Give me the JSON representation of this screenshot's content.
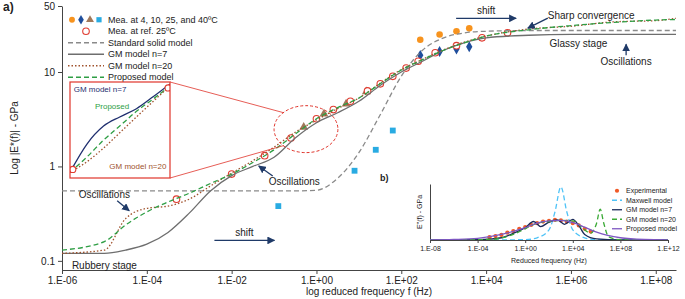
{
  "chart_data": [
    {
      "type": "line",
      "title": "a)",
      "x_label": "log reduced frequency f (Hz)",
      "y_label": "Log |E*(f)| - GPa",
      "log": true,
      "grid": false,
      "legend": "top-left",
      "xlim": [
        1e-06,
        300000000.0
      ],
      "ylim": [
        0.08,
        50
      ],
      "xticks": [
        {
          "value": 1e-06,
          "label": "1.E-06"
        },
        {
          "value": 0.0001,
          "label": "1.E-04"
        },
        {
          "value": 0.01,
          "label": "1.E-02"
        },
        {
          "value": 1,
          "label": "1.E+00"
        },
        {
          "value": 100,
          "label": "1.E+02"
        },
        {
          "value": 10000,
          "label": "1.E+04"
        },
        {
          "value": 1000000.0,
          "label": "1.E+06"
        },
        {
          "value": 100000000.0,
          "label": "1.E+08"
        }
      ],
      "yticks": [
        0.1,
        1,
        10,
        50
      ],
      "series": [
        {
          "name": "Mea. at 4, 10, 25, and 40ºC",
          "type": "scatter",
          "groups": [
            {
              "color": "#f7931e",
              "marker": "circle",
              "x": [
                280,
                800,
                2000,
                4000
              ],
              "values": [
                22,
                25,
                27,
                29
              ]
            },
            {
              "color": "#1f4e9c",
              "marker": "diamond",
              "x": [
                280,
                800,
                2000,
                4000
              ],
              "values": [
                15,
                16.5,
                17.5,
                18.5
              ]
            },
            {
              "color": "#a0785a",
              "marker": "triangle",
              "x": [
                0.5,
                1.5,
                5,
                15
              ],
              "values": [
                2.6,
                3.6,
                4.6,
                6.2
              ]
            },
            {
              "color": "#29abe2",
              "marker": "square",
              "x": [
                0.126,
                7.9,
                25,
                63
              ],
              "values": [
                0.38,
                0.9,
                1.5,
                2.4
              ]
            }
          ]
        },
        {
          "name": "Mea. at ref. 25ºC",
          "type": "scatter",
          "marker": "open-circle",
          "color": "#e03c31",
          "x": [
            0.0005,
            0.01,
            0.06,
            0.25,
            1,
            2.5,
            6.3,
            16,
            32,
            63,
            130,
            250,
            630,
            2000,
            8000,
            32000
          ],
          "values": [
            0.45,
            0.83,
            1.3,
            2.0,
            3.2,
            4.0,
            4.9,
            6.3,
            7.5,
            9,
            11,
            13,
            16,
            19,
            23,
            26
          ]
        },
        {
          "name": "Standard solid model",
          "type": "line",
          "line_style": "dashed",
          "color": "#8a8a8a",
          "x": [
            1e-06,
            1e-05,
            3.16e-05,
            0.0001,
            0.000316,
            0.001,
            0.00316,
            0.01,
            0.0316,
            0.1,
            0.316,
            1,
            3.16,
            10,
            31.6,
            100,
            316,
            1000,
            3160,
            10000,
            100000.0,
            1000000.0,
            10000000.0,
            100000000.0,
            300000000.0
          ],
          "values": [
            0.55,
            0.55,
            0.55,
            0.55,
            0.55,
            0.55,
            0.55,
            0.55,
            0.55,
            0.55,
            0.55,
            0.56,
            0.75,
            1.4,
            3.5,
            9,
            17,
            23,
            26,
            27,
            27.5,
            27.5,
            27.5,
            27.5,
            27.5
          ]
        },
        {
          "name": "GM model n=7",
          "type": "line",
          "line_style": "solid",
          "color": "#6e6e6e",
          "x": [
            1e-06,
            1e-05,
            3.16e-05,
            0.0001,
            0.000316,
            0.001,
            0.00316,
            0.01,
            0.0316,
            0.1,
            0.316,
            1,
            3.16,
            10,
            31.6,
            100,
            316,
            1000,
            3160,
            10000,
            100000.0,
            1000000.0,
            10000000.0,
            100000000.0,
            300000000.0
          ],
          "values": [
            0.12,
            0.12,
            0.13,
            0.15,
            0.2,
            0.32,
            0.55,
            0.8,
            1.0,
            1.25,
            2.0,
            2.9,
            3.7,
            4.9,
            7.2,
            10,
            13,
            17,
            20.5,
            23,
            24.5,
            25,
            25,
            25,
            25
          ]
        },
        {
          "name": "GM model n=20",
          "type": "line",
          "line_style": "dotted",
          "color": "#a0522d",
          "x": [
            1e-06,
            1e-05,
            3.16e-05,
            0.0001,
            0.000316,
            0.001,
            0.00316,
            0.01,
            0.0316,
            0.1,
            0.316,
            1,
            3.16,
            10,
            31.6,
            100,
            316,
            1000,
            3160,
            10000,
            100000.0,
            1000000.0,
            10000000.0,
            100000000.0,
            300000000.0
          ],
          "values": [
            0.12,
            0.13,
            0.28,
            0.36,
            0.38,
            0.45,
            0.62,
            0.85,
            1.15,
            1.6,
            2.3,
            3.1,
            4.1,
            5.3,
            7.6,
            10.6,
            13.6,
            17.2,
            20.8,
            24,
            28.5,
            30.5,
            34,
            35,
            37
          ]
        },
        {
          "name": "Proposed model",
          "type": "line",
          "line_style": "dashed",
          "color": "#2e9e44",
          "x": [
            1e-06,
            1e-05,
            3.16e-05,
            0.0001,
            0.000316,
            0.001,
            0.00316,
            0.01,
            0.0316,
            0.1,
            0.316,
            1,
            3.16,
            10,
            31.6,
            100,
            316,
            1000,
            3160,
            10000,
            100000.0,
            1000000.0,
            10000000.0,
            100000000.0,
            300000000.0
          ],
          "values": [
            0.13,
            0.16,
            0.24,
            0.33,
            0.42,
            0.52,
            0.66,
            0.83,
            1.1,
            1.5,
            2.2,
            3.2,
            4.2,
            5.3,
            7.5,
            10.5,
            13.5,
            17,
            20.5,
            24,
            28,
            31,
            33.5,
            35.5,
            36
          ]
        }
      ],
      "annotations": [
        {
          "text": "shift",
          "x": 10000,
          "y": 45,
          "arrow": "right"
        },
        {
          "text": "Sharp convergence",
          "x": 3000000.0,
          "y": 40,
          "arrow": "down-left"
        },
        {
          "text": "Oscillations",
          "x": 20000000.0,
          "y": 13,
          "arrow": "up"
        },
        {
          "text": "Glassy stage",
          "x": 1500000.0,
          "y": 20
        },
        {
          "text": "Oscillations",
          "x": 0.3,
          "y": 0.7,
          "arrow": "up-left"
        },
        {
          "text": "shift",
          "x": 0.02,
          "y": 0.2,
          "arrow": "right"
        },
        {
          "text": "Oscillations",
          "x": 1e-05,
          "y": 0.5,
          "arrow": "down-right"
        },
        {
          "text": "Rubbery stage",
          "x": 1e-05,
          "y": 0.09
        }
      ]
    },
    {
      "type": "line",
      "log": true,
      "tick_labels": false,
      "xlim": [
        0.1,
        3.2
      ],
      "ylim": [
        1.4,
        4.4
      ],
      "series": [
        {
          "type": "line",
          "line_style": "solid",
          "color": "#1f2f6f",
          "x": [
            0.1,
            0.18,
            0.32,
            0.56,
            1,
            1.8,
            3.2
          ],
          "values": [
            1.5,
            2.1,
            2.6,
            2.9,
            3.2,
            3.7,
            4.3
          ]
        },
        {
          "type": "line",
          "line_style": "dashed",
          "color": "#2e9e44",
          "x": [
            0.1,
            0.18,
            0.32,
            0.56,
            1,
            1.8,
            3.2
          ],
          "values": [
            1.5,
            1.8,
            2.2,
            2.6,
            3.1,
            3.6,
            4.2
          ]
        },
        {
          "type": "line",
          "line_style": "dotted",
          "color": "#a0522d",
          "x": [
            0.1,
            0.18,
            0.32,
            0.56,
            1,
            1.8,
            3.2
          ],
          "values": [
            1.5,
            1.7,
            2.0,
            2.4,
            2.9,
            3.5,
            4.2
          ]
        },
        {
          "type": "scatter",
          "marker": "open-circle",
          "color": "#e03c31",
          "x": [
            0.11,
            3.0
          ],
          "values": [
            1.55,
            4.1
          ]
        }
      ],
      "annotations": [
        {
          "text": "GM model n=7",
          "x": 0.283,
          "y": 4.0,
          "color": "#1f2f6f"
        },
        {
          "text": "Proposed",
          "x": 0.43,
          "y": 3.3,
          "color": "#2e9e44"
        },
        {
          "text": "GM model n=20",
          "x": 1.05,
          "y": 1.6,
          "color": "#a0522d"
        }
      ]
    },
    {
      "type": "line",
      "title": "b)",
      "x_label": "Reduced frequency (Hz)",
      "y_label": "E''(f) - GPa",
      "log": "x",
      "tick_labels": "x",
      "legend": "top-right",
      "xlim": [
        1e-08,
        1000000000000.0
      ],
      "ylim": [
        0,
        10
      ],
      "xticks": [
        {
          "value": 1e-08,
          "label": "1.E-08"
        },
        {
          "value": 0.0001,
          "label": "1.E-04"
        },
        {
          "value": 1,
          "label": "1.E+00"
        },
        {
          "value": 10000,
          "label": "1.E+04"
        },
        {
          "value": 100000000.0,
          "label": "1.E+08"
        },
        {
          "value": 1000000000000.0,
          "label": "1.E+12"
        }
      ],
      "series": [
        {
          "name": "Experimental",
          "type": "scatter",
          "marker": "circle",
          "color": "#f05a28",
          "x": [
            0.001,
            0.00316,
            0.01,
            0.0316,
            0.1,
            0.316,
            1,
            3.16,
            10,
            31.6,
            100,
            316,
            1000,
            3160,
            10000,
            31600,
            100000.0,
            316000.0
          ],
          "values": [
            0.5,
            0.7,
            0.9,
            1.3,
            1.6,
            2.0,
            2.3,
            2.7,
            3.0,
            3.3,
            3.4,
            3.6,
            3.5,
            3.3,
            3.0,
            2.6,
            2.0,
            1.5
          ]
        },
        {
          "name": "Maxwell model",
          "type": "line",
          "line_style": "dashed",
          "color": "#4fc3f7",
          "x": [
            1e-08,
            1,
            10,
            100,
            316,
            1000,
            3160,
            10000,
            100000.0,
            1000000.0,
            1000000000000.0
          ],
          "values": [
            0,
            0.05,
            0.4,
            1.8,
            5,
            9.5,
            5,
            1.8,
            0.4,
            0.05,
            0
          ]
        },
        {
          "name": "GM model n=7",
          "type": "line",
          "line_style": "solid",
          "color": "#1b2a59",
          "x": [
            1e-08,
            0.0001,
            0.01,
            0.1,
            1,
            5,
            20,
            100,
            500,
            2000,
            10000,
            31600,
            100000.0,
            1000000.0,
            100000000.0,
            1000000000000.0
          ],
          "values": [
            0,
            0.05,
            0.4,
            1.2,
            2.2,
            3.3,
            2.4,
            3.2,
            3.6,
            2.8,
            3.7,
            2.6,
            1.0,
            0.2,
            0.02,
            0
          ]
        },
        {
          "name": "GM model n=20",
          "type": "line",
          "line_style": "dashed",
          "color": "#3aa935",
          "x": [
            1e-08,
            0.001,
            0.1,
            1,
            10,
            100,
            1000,
            10000,
            100000.0,
            316000.0,
            1000000.0,
            2000000.0,
            4000000.0,
            10000000.0,
            100000000.0,
            1000000000000.0
          ],
          "values": [
            0,
            0.1,
            1.0,
            2.0,
            3.0,
            3.3,
            3.5,
            3.4,
            1.8,
            1.2,
            3.0,
            5.5,
            3.0,
            0.6,
            0.05,
            0
          ]
        },
        {
          "name": "Proposed model",
          "type": "line",
          "line_style": "solid",
          "color": "#7e57c2",
          "x": [
            1e-08,
            1e-06,
            0.0001,
            0.01,
            1,
            10,
            100,
            1000,
            10000,
            100000.0,
            1000000.0,
            100000000.0,
            10000000000.0,
            1000000000000.0
          ],
          "values": [
            0.02,
            0.1,
            0.3,
            1.0,
            2.2,
            3.0,
            3.4,
            3.5,
            3.1,
            2.3,
            1.4,
            0.4,
            0.1,
            0.03
          ]
        }
      ]
    }
  ]
}
